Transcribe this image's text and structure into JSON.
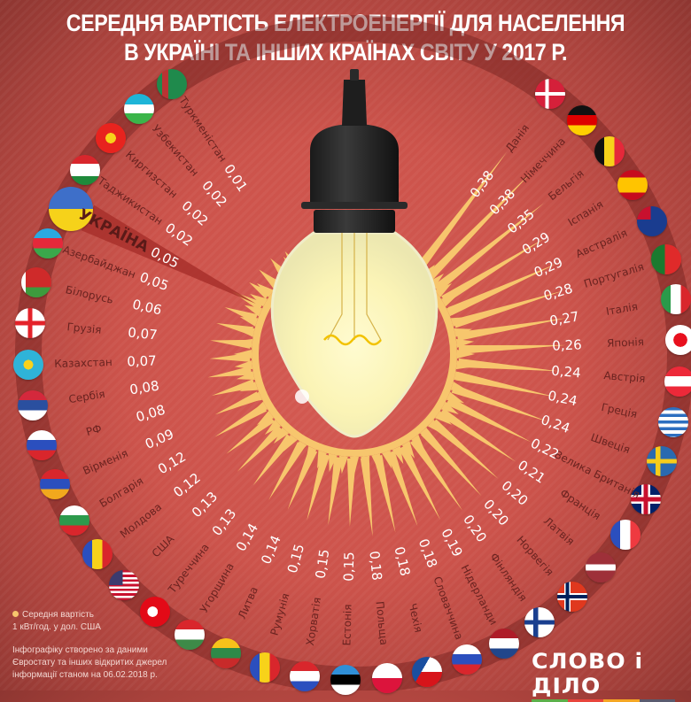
{
  "title": {
    "line1": "СЕРЕДНЯ ВАРТІСТЬ ЕЛЕКТРОЕНЕРГІЇ ДЛЯ НАСЕЛЕННЯ",
    "line2": "В УКРАЇНІ ТА ІНШИХ КРАЇНАХ СВІТУ У 2017 Р."
  },
  "legend": {
    "line1": "Середня вартість",
    "line2": "1 кВт/год. у дол. США"
  },
  "source": {
    "line1": "Інфографіку створено за даними",
    "line2": "Євростату та інших відкритих джерел",
    "line3": "інформації станом на 06.02.2018 р."
  },
  "logo": {
    "text": "СЛОВО і ДІЛО",
    "bar_colors": [
      "#5cb04a",
      "#e8453c",
      "#f5a623",
      "#5a5a6e"
    ]
  },
  "colors": {
    "background": "#cc534b",
    "ray": "#f7c66d",
    "label": "#6a2320",
    "value": "#ffffff",
    "ring": "#8f3733",
    "ukraine_band": "#a8302c"
  },
  "chart_data": {
    "type": "radial-bar",
    "title": "Середня вартість електроенергії для населення в Україні та інших країнах світу у 2017 р.",
    "unit": "USD per 1 kWh",
    "categories": [
      "Туркменістан",
      "Узбекистан",
      "Киргизстан",
      "Таджикистан",
      "УКРАЇНА",
      "Азербайджан",
      "Білорусь",
      "Грузія",
      "Казахстан",
      "Сербія",
      "РФ",
      "Вірменія",
      "Болгарія",
      "Молдова",
      "США",
      "Туреччина",
      "Угорщина",
      "Литва",
      "Румунія",
      "Хорватія",
      "Естонія",
      "Польща",
      "Чехія",
      "Словаччина",
      "Нідерланди",
      "Фінляндія",
      "Норвегія",
      "Латвія",
      "Франція",
      "Велика Британія",
      "Швеція",
      "Греція",
      "Австрія",
      "Японія",
      "Італія",
      "Португалія",
      "Австралія",
      "Іспанія",
      "Бельгія",
      "Німеччина",
      "Данія"
    ],
    "values": [
      0.01,
      0.02,
      0.02,
      0.02,
      0.05,
      0.05,
      0.06,
      0.07,
      0.07,
      0.08,
      0.08,
      0.09,
      0.12,
      0.12,
      0.13,
      0.13,
      0.14,
      0.14,
      0.15,
      0.15,
      0.15,
      0.18,
      0.18,
      0.18,
      0.19,
      0.2,
      0.2,
      0.2,
      0.21,
      0.22,
      0.24,
      0.24,
      0.24,
      0.26,
      0.27,
      0.28,
      0.29,
      0.29,
      0.35,
      0.38,
      0.38
    ],
    "highlight": "УКРАЇНА"
  },
  "items": [
    {
      "label": "Туркменістан",
      "value": "0,01",
      "flag": "tm"
    },
    {
      "label": "Узбекистан",
      "value": "0,02",
      "flag": "uz"
    },
    {
      "label": "Киргизстан",
      "value": "0,02",
      "flag": "kg"
    },
    {
      "label": "Таджикистан",
      "value": "0,02",
      "flag": "tj"
    },
    {
      "label": "УКРАЇНА",
      "value": "0,05",
      "flag": "ua",
      "highlight": true
    },
    {
      "label": "Азербайджан",
      "value": "0,05",
      "flag": "az"
    },
    {
      "label": "Білорусь",
      "value": "0,06",
      "flag": "by"
    },
    {
      "label": "Грузія",
      "value": "0,07",
      "flag": "ge"
    },
    {
      "label": "Казахстан",
      "value": "0,07",
      "flag": "kz"
    },
    {
      "label": "Сербія",
      "value": "0,08",
      "flag": "rs"
    },
    {
      "label": "РФ",
      "value": "0,08",
      "flag": "ru"
    },
    {
      "label": "Вірменія",
      "value": "0,09",
      "flag": "am"
    },
    {
      "label": "Болгарія",
      "value": "0,12",
      "flag": "bg"
    },
    {
      "label": "Молдова",
      "value": "0,12",
      "flag": "md"
    },
    {
      "label": "США",
      "value": "0,13",
      "flag": "us"
    },
    {
      "label": "Туреччина",
      "value": "0,13",
      "flag": "tr"
    },
    {
      "label": "Угорщина",
      "value": "0,14",
      "flag": "hu"
    },
    {
      "label": "Литва",
      "value": "0,14",
      "flag": "lt"
    },
    {
      "label": "Румунія",
      "value": "0,15",
      "flag": "ro"
    },
    {
      "label": "Хорватія",
      "value": "0,15",
      "flag": "hr"
    },
    {
      "label": "Естонія",
      "value": "0,15",
      "flag": "ee"
    },
    {
      "label": "Польща",
      "value": "0,18",
      "flag": "pl"
    },
    {
      "label": "Чехія",
      "value": "0,18",
      "flag": "cz"
    },
    {
      "label": "Словаччина",
      "value": "0,18",
      "flag": "sk"
    },
    {
      "label": "Нідерланди",
      "value": "0,19",
      "flag": "nl"
    },
    {
      "label": "Фінляндія",
      "value": "0,20",
      "flag": "fi"
    },
    {
      "label": "Норвегія",
      "value": "0,20",
      "flag": "no"
    },
    {
      "label": "Латвія",
      "value": "0,20",
      "flag": "lv"
    },
    {
      "label": "Франція",
      "value": "0,21",
      "flag": "fr"
    },
    {
      "label": "Велика Британія",
      "value": "0,22",
      "flag": "gb"
    },
    {
      "label": "Швеція",
      "value": "0,24",
      "flag": "se"
    },
    {
      "label": "Греція",
      "value": "0,24",
      "flag": "gr"
    },
    {
      "label": "Австрія",
      "value": "0,24",
      "flag": "at"
    },
    {
      "label": "Японія",
      "value": "0,26",
      "flag": "jp"
    },
    {
      "label": "Італія",
      "value": "0,27",
      "flag": "it"
    },
    {
      "label": "Португалія",
      "value": "0,28",
      "flag": "pt"
    },
    {
      "label": "Австралія",
      "value": "0,29",
      "flag": "au"
    },
    {
      "label": "Іспанія",
      "value": "0,29",
      "flag": "es"
    },
    {
      "label": "Бельгія",
      "value": "0,35",
      "flag": "be"
    },
    {
      "label": "Німеччина",
      "value": "0,38",
      "flag": "de"
    },
    {
      "label": "Данія",
      "value": "0,38",
      "flag": "dk"
    }
  ]
}
